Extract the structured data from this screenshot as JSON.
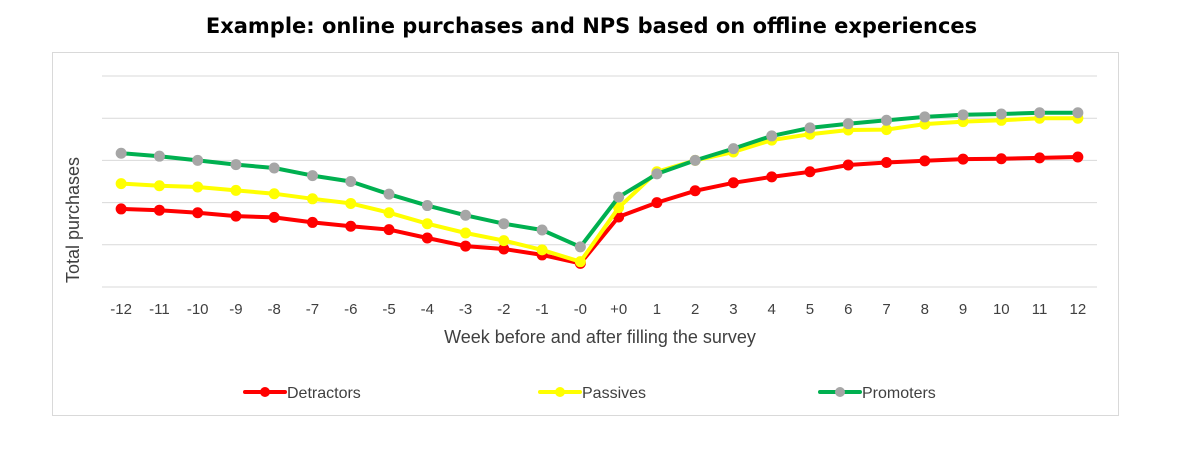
{
  "chart_data": {
    "type": "line",
    "title": "Example: online purchases and NPS based on offline experiences",
    "xlabel": "Week before and after filling the survey",
    "ylabel": "Total purchases",
    "categories": [
      "-12",
      "-11",
      "-10",
      "-9",
      "-8",
      "-7",
      "-6",
      "-5",
      "-4",
      "-3",
      "-2",
      "-1",
      "-0",
      "+0",
      "1",
      "2",
      "3",
      "4",
      "5",
      "6",
      "7",
      "8",
      "9",
      "10",
      "11",
      "12"
    ],
    "ylim": [
      0,
      5
    ],
    "y_ticks_shown": false,
    "grid": true,
    "legend_position": "bottom",
    "series": [
      {
        "name": "Detractors",
        "color": "#ff0000",
        "marker_color": "#ff0000",
        "values": [
          1.85,
          1.82,
          1.76,
          1.68,
          1.65,
          1.53,
          1.44,
          1.36,
          1.16,
          0.97,
          0.9,
          0.76,
          0.56,
          1.66,
          2.0,
          2.28,
          2.47,
          2.61,
          2.73,
          2.89,
          2.95,
          2.99,
          3.03,
          3.04,
          3.06,
          3.08
        ]
      },
      {
        "name": "Passives",
        "color": "#ffff00",
        "marker_color": "#ffff00",
        "values": [
          2.45,
          2.4,
          2.37,
          2.29,
          2.21,
          2.09,
          1.98,
          1.76,
          1.5,
          1.28,
          1.1,
          0.88,
          0.6,
          1.88,
          2.73,
          3.0,
          3.2,
          3.48,
          3.62,
          3.72,
          3.73,
          3.86,
          3.92,
          3.95,
          4.0,
          4.0
        ]
      },
      {
        "name": "Promoters",
        "color": "#00b050",
        "marker_color": "#a6a6a6",
        "values": [
          3.17,
          3.1,
          3.0,
          2.9,
          2.82,
          2.64,
          2.5,
          2.2,
          1.93,
          1.7,
          1.5,
          1.35,
          0.95,
          2.13,
          2.68,
          3.0,
          3.28,
          3.58,
          3.77,
          3.87,
          3.95,
          4.03,
          4.08,
          4.1,
          4.13,
          4.13
        ]
      }
    ]
  }
}
